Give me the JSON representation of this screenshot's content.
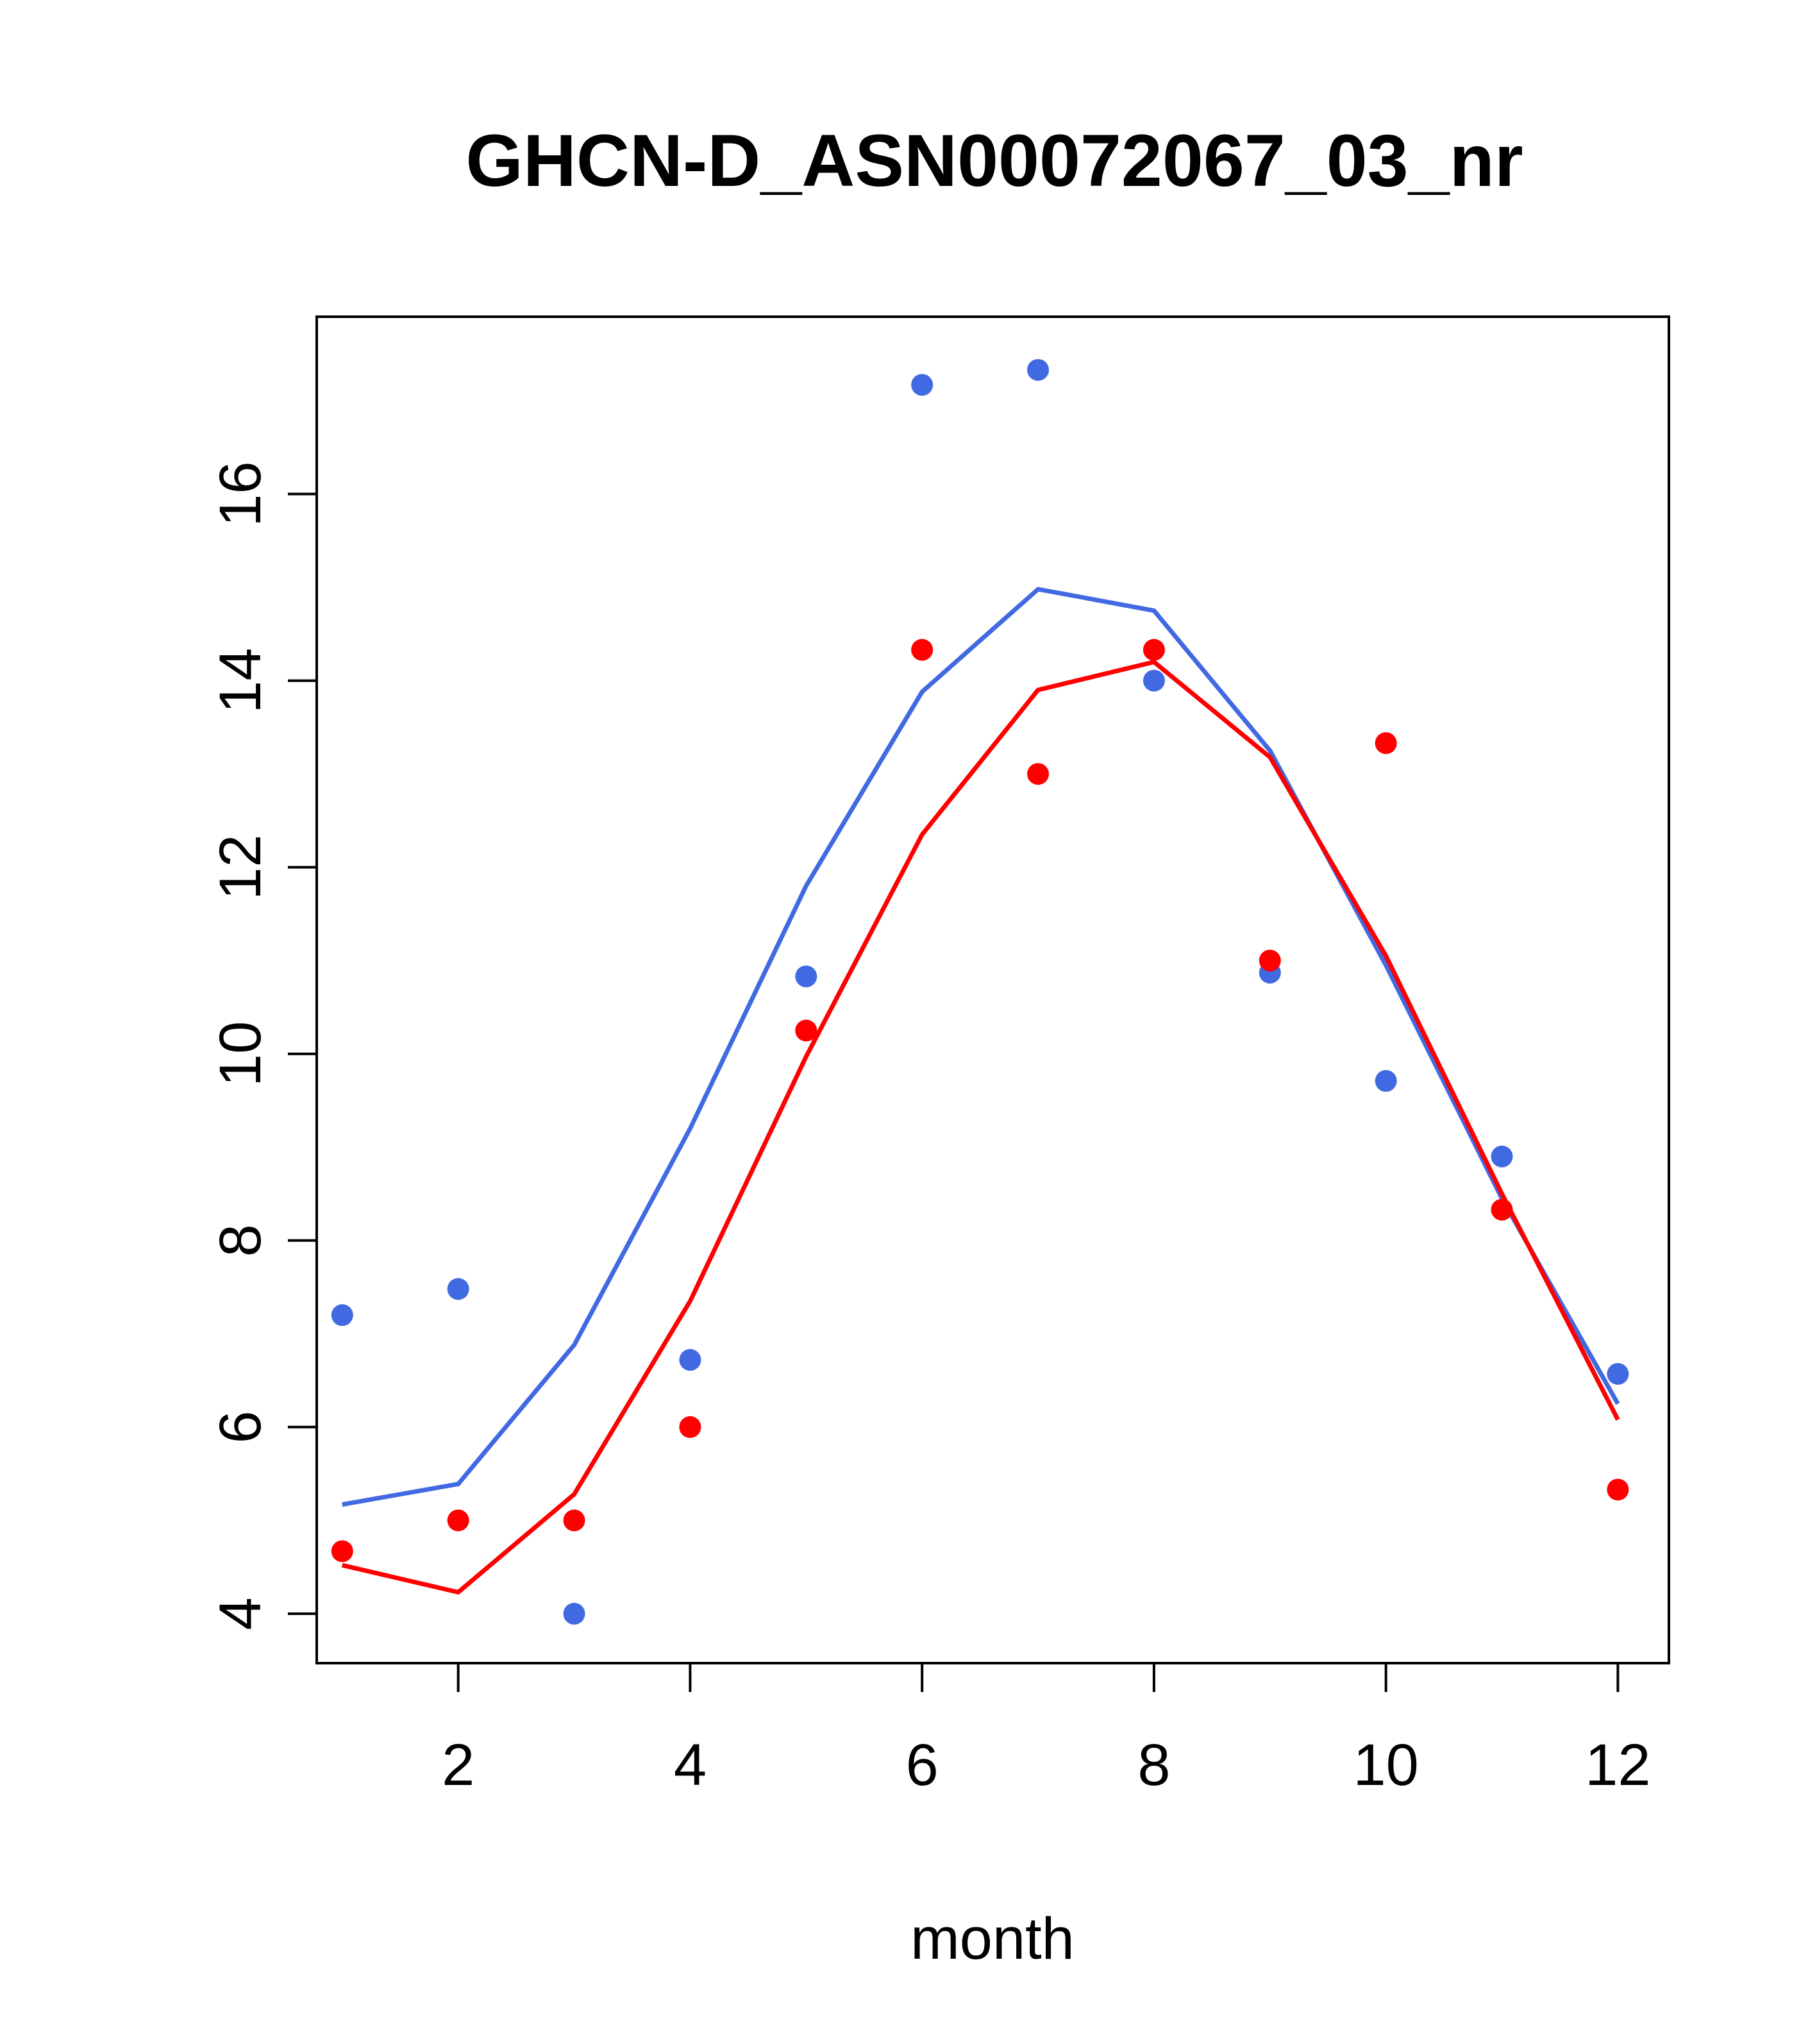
{
  "chart_data": {
    "type": "scatter",
    "title": "GHCN-D_ASN00072067_03_nr",
    "xlabel": "month",
    "ylabel": "",
    "xlim": [
      0.78,
      12.44
    ],
    "ylim": [
      3.47,
      17.9
    ],
    "x_ticks": [
      2,
      4,
      6,
      8,
      10,
      12
    ],
    "y_ticks": [
      4,
      6,
      8,
      10,
      12,
      14,
      16
    ],
    "grid": false,
    "legend": "none",
    "series": [
      {
        "color": "#4169E1",
        "kind": "points",
        "x": [
          1,
          2,
          3,
          4,
          5,
          6,
          7,
          8,
          9,
          10,
          11,
          12
        ],
        "y": [
          7.2,
          7.48,
          4.0,
          6.72,
          10.83,
          17.17,
          17.33,
          14.0,
          10.87,
          9.71,
          8.9,
          6.57
        ]
      },
      {
        "color": "#4169E1",
        "kind": "line",
        "x": [
          1,
          2,
          3,
          4,
          5,
          6,
          7,
          8,
          9,
          10,
          11,
          12
        ],
        "y": [
          5.17,
          5.39,
          6.88,
          9.2,
          11.8,
          13.88,
          14.98,
          14.75,
          13.25,
          10.95,
          8.45,
          6.25
        ]
      },
      {
        "color": "#FF0000",
        "kind": "points",
        "x": [
          1,
          2,
          3,
          4,
          5,
          6,
          7,
          8,
          9,
          10,
          11,
          12
        ],
        "y": [
          4.67,
          5.0,
          5.0,
          6.0,
          10.25,
          14.33,
          13.0,
          14.33,
          11.0,
          13.33,
          8.33,
          5.33
        ]
      },
      {
        "color": "#FF0000",
        "kind": "line",
        "x": [
          1,
          2,
          3,
          4,
          5,
          6,
          7,
          8,
          9,
          10,
          11,
          12
        ],
        "y": [
          4.52,
          4.23,
          5.28,
          7.35,
          9.97,
          12.35,
          13.9,
          14.2,
          13.18,
          11.05,
          8.5,
          6.08
        ]
      }
    ]
  }
}
